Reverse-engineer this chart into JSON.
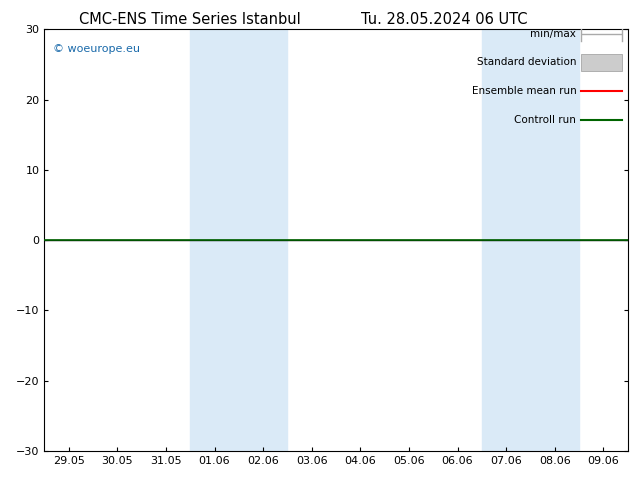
{
  "title_left": "CMC-ENS Time Series Istanbul",
  "title_right": "Tu. 28.05.2024 06 UTC",
  "ylim": [
    -30,
    30
  ],
  "yticks": [
    -30,
    -20,
    -10,
    0,
    10,
    20,
    30
  ],
  "xlabels": [
    "29.05",
    "30.05",
    "31.05",
    "01.06",
    "02.06",
    "03.06",
    "04.06",
    "05.06",
    "06.06",
    "07.06",
    "08.06",
    "09.06"
  ],
  "shaded_columns": [
    3,
    4,
    9,
    10
  ],
  "shaded_color": "#daeaf7",
  "watermark": "© woeurope.eu",
  "watermark_color": "#1a6aaa",
  "legend_items": [
    {
      "label": "min/max",
      "color": "#aaaaaa",
      "style": "minmax"
    },
    {
      "label": "Standard deviation",
      "color": "#cccccc",
      "style": "box"
    },
    {
      "label": "Ensemble mean run",
      "color": "#ff0000",
      "style": "line"
    },
    {
      "label": "Controll run",
      "color": "#006400",
      "style": "line"
    }
  ],
  "zero_line_color": "#000000",
  "control_run_color": "#006400",
  "ensemble_mean_color": "#ff0000",
  "bg_color": "#ffffff",
  "border_color": "#000000",
  "title_fontsize": 10.5,
  "tick_fontsize": 8,
  "legend_fontsize": 7.5
}
